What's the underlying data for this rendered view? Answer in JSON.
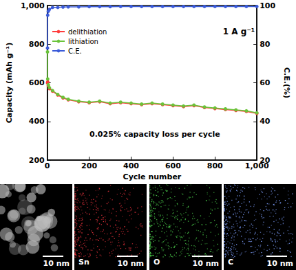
{
  "chart_data": {
    "type": "line",
    "x_label": "Cycle number",
    "y_label": "Capacity (mAh g⁻¹)",
    "y2_label": "C.E.(%)",
    "annotations": [
      "1 A g⁻¹",
      "0.025% capacity loss per cycle"
    ],
    "x": [
      1,
      2,
      5,
      10,
      25,
      50,
      75,
      100,
      150,
      200,
      250,
      300,
      350,
      400,
      450,
      500,
      550,
      600,
      650,
      700,
      750,
      800,
      850,
      900,
      950,
      1000
    ],
    "series": [
      {
        "name": "delithiation",
        "color": "#ff3b3b",
        "marker": "circle",
        "values": [
          600,
          605,
          585,
          570,
          557,
          537,
          522,
          512,
          502,
          497,
          502,
          492,
          497,
          492,
          487,
          492,
          487,
          482,
          477,
          482,
          472,
          467,
          462,
          457,
          452,
          442
        ]
      },
      {
        "name": "lithiation",
        "color": "#6ac43a",
        "marker": "circle",
        "values": [
          760,
          620,
          590,
          575,
          560,
          540,
          525,
          515,
          505,
          500,
          505,
          495,
          500,
          495,
          490,
          495,
          490,
          485,
          480,
          485,
          475,
          470,
          465,
          460,
          455,
          445
        ]
      },
      {
        "name": "C.E.",
        "color": "#3b5bd9",
        "marker": "circle",
        "axis": "y2",
        "values": [
          78,
          95,
          97,
          98,
          99,
          99,
          99.2,
          99.3,
          99.3,
          99.4,
          99.4,
          99.4,
          99.5,
          99.5,
          99.5,
          99.5,
          99.5,
          99.5,
          99.5,
          99.5,
          99.5,
          99.5,
          99.5,
          99.5,
          99.5,
          99.5
        ]
      }
    ],
    "xlim": [
      0,
      1000
    ],
    "xticks": [
      0,
      200,
      400,
      600,
      800,
      1000
    ],
    "ylim": [
      200,
      1000
    ],
    "yticks": [
      200,
      400,
      600,
      800,
      1000
    ],
    "y2lim": [
      20,
      100
    ],
    "y2ticks": [
      20,
      40,
      60,
      80,
      100
    ],
    "grid": false,
    "legend": "upper left"
  },
  "panels": [
    {
      "color": "#bbbbbb",
      "scale_bar": "10 nm"
    },
    {
      "element": "Sn",
      "color": "#e0303a",
      "scale_bar": "10 nm"
    },
    {
      "element": "O",
      "color": "#4cd04c",
      "scale_bar": "10 nm"
    },
    {
      "element": "C",
      "color": "#7fa0ff",
      "scale_bar": "10 nm"
    }
  ]
}
